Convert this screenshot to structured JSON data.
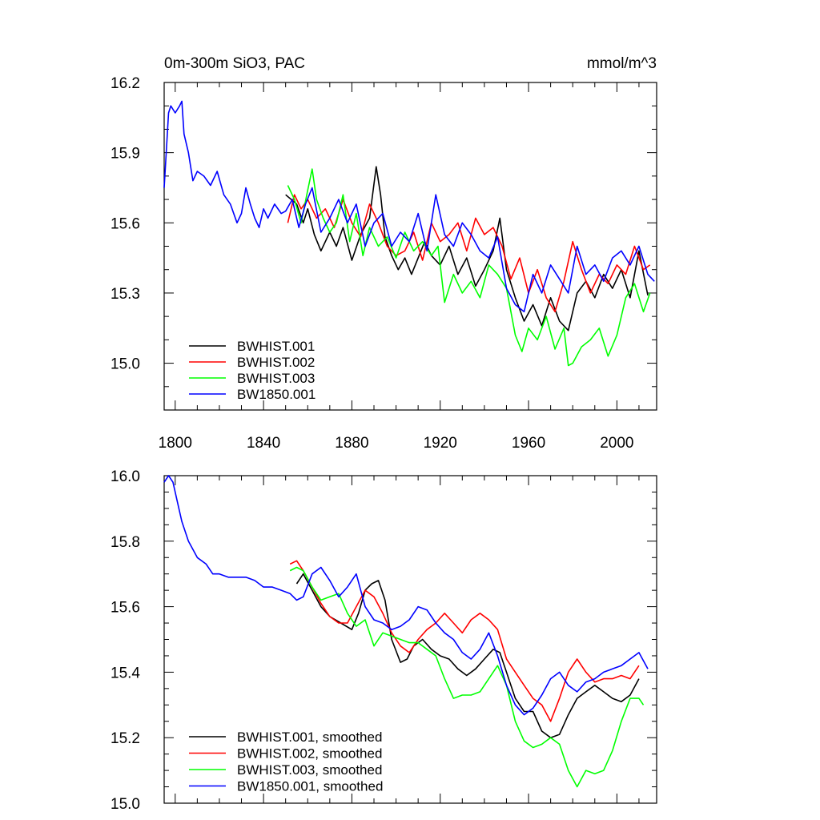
{
  "chart_data": [
    {
      "type": "line",
      "title": "0m-300m SiO3, PAC",
      "units": "mmol/m^3",
      "xlim": [
        1795,
        2018
      ],
      "ylim": [
        14.8,
        16.2
      ],
      "x_ticks": [
        1800,
        1840,
        1880,
        1920,
        1960,
        2000
      ],
      "y_ticks": [
        15.0,
        15.3,
        15.6,
        15.9,
        16.2
      ],
      "y_tick_labels": [
        "15.0",
        "15.3",
        "15.6",
        "15.9",
        "16.2"
      ],
      "legend": [
        "BWHIST.001",
        "BWHIST.002",
        "BWHIST.003",
        "BW1850.001"
      ],
      "series": [
        {
          "name": "BWHIST.001",
          "color": "#000000",
          "x": [
            1850,
            1855,
            1858,
            1860,
            1863,
            1866,
            1870,
            1873,
            1876,
            1880,
            1884,
            1888,
            1891,
            1893,
            1895,
            1898,
            1901,
            1904,
            1907,
            1910,
            1913,
            1916,
            1920,
            1924,
            1928,
            1932,
            1936,
            1940,
            1944,
            1947,
            1950,
            1954,
            1958,
            1962,
            1966,
            1970,
            1974,
            1978,
            1982,
            1986,
            1990,
            1994,
            1998,
            2002,
            2006,
            2010,
            2014
          ],
          "values": [
            15.72,
            15.68,
            15.6,
            15.66,
            15.55,
            15.48,
            15.56,
            15.5,
            15.58,
            15.44,
            15.55,
            15.62,
            15.84,
            15.72,
            15.54,
            15.46,
            15.4,
            15.45,
            15.38,
            15.45,
            15.52,
            15.46,
            15.42,
            15.5,
            15.38,
            15.45,
            15.33,
            15.4,
            15.48,
            15.62,
            15.4,
            15.28,
            15.18,
            15.25,
            15.16,
            15.28,
            15.18,
            15.14,
            15.3,
            15.35,
            15.28,
            15.38,
            15.32,
            15.4,
            15.28,
            15.48,
            15.29
          ]
        },
        {
          "name": "BWHIST.002",
          "color": "#ff0000",
          "x": [
            1851,
            1854,
            1857,
            1860,
            1864,
            1868,
            1872,
            1876,
            1880,
            1884,
            1888,
            1892,
            1896,
            1900,
            1904,
            1908,
            1912,
            1916,
            1920,
            1924,
            1928,
            1932,
            1936,
            1940,
            1944,
            1948,
            1952,
            1956,
            1960,
            1964,
            1968,
            1972,
            1976,
            1980,
            1984,
            1988,
            1992,
            1996,
            2000,
            2004,
            2008,
            2012,
            2015
          ],
          "values": [
            15.6,
            15.72,
            15.66,
            15.7,
            15.62,
            15.66,
            15.58,
            15.7,
            15.6,
            15.54,
            15.68,
            15.6,
            15.5,
            15.46,
            15.48,
            15.56,
            15.44,
            15.6,
            15.52,
            15.55,
            15.6,
            15.48,
            15.62,
            15.55,
            15.58,
            15.5,
            15.36,
            15.45,
            15.3,
            15.4,
            15.28,
            15.22,
            15.35,
            15.52,
            15.4,
            15.3,
            15.38,
            15.34,
            15.42,
            15.38,
            15.5,
            15.4,
            15.42
          ]
        },
        {
          "name": "BWHIST.003",
          "color": "#00ff00",
          "x": [
            1851,
            1854,
            1857,
            1860,
            1862,
            1864,
            1867,
            1870,
            1873,
            1876,
            1879,
            1882,
            1885,
            1888,
            1892,
            1896,
            1900,
            1904,
            1908,
            1912,
            1916,
            1919,
            1922,
            1926,
            1930,
            1934,
            1938,
            1942,
            1946,
            1950,
            1954,
            1957,
            1960,
            1964,
            1968,
            1972,
            1976,
            1978,
            1980,
            1984,
            1988,
            1992,
            1996,
            2000,
            2004,
            2008,
            2012,
            2015
          ],
          "values": [
            15.76,
            15.7,
            15.6,
            15.74,
            15.83,
            15.7,
            15.62,
            15.56,
            15.6,
            15.72,
            15.52,
            15.64,
            15.46,
            15.58,
            15.5,
            15.54,
            15.45,
            15.56,
            15.48,
            15.52,
            15.46,
            15.5,
            15.26,
            15.38,
            15.3,
            15.35,
            15.28,
            15.42,
            15.38,
            15.32,
            15.12,
            15.05,
            15.15,
            15.1,
            15.2,
            15.06,
            15.15,
            14.99,
            15.0,
            15.07,
            15.1,
            15.15,
            15.03,
            15.12,
            15.28,
            15.34,
            15.22,
            15.3
          ]
        },
        {
          "name": "BW1850.001",
          "color": "#0000ff",
          "x": [
            1795,
            1797,
            1798,
            1800,
            1802,
            1803,
            1804,
            1806,
            1808,
            1810,
            1813,
            1816,
            1819,
            1822,
            1825,
            1828,
            1830,
            1832,
            1834,
            1836,
            1838,
            1840,
            1842,
            1845,
            1848,
            1850,
            1853,
            1856,
            1859,
            1862,
            1866,
            1870,
            1874,
            1878,
            1882,
            1886,
            1890,
            1894,
            1898,
            1902,
            1906,
            1910,
            1914,
            1918,
            1922,
            1926,
            1930,
            1934,
            1938,
            1942,
            1946,
            1950,
            1954,
            1958,
            1962,
            1966,
            1970,
            1974,
            1978,
            1982,
            1986,
            1990,
            1994,
            1998,
            2002,
            2006,
            2010,
            2014,
            2017
          ],
          "values": [
            15.75,
            16.07,
            16.1,
            16.07,
            16.1,
            16.12,
            15.98,
            15.9,
            15.78,
            15.82,
            15.8,
            15.76,
            15.82,
            15.72,
            15.68,
            15.6,
            15.64,
            15.75,
            15.68,
            15.62,
            15.58,
            15.66,
            15.62,
            15.68,
            15.64,
            15.65,
            15.7,
            15.58,
            15.68,
            15.75,
            15.56,
            15.62,
            15.7,
            15.6,
            15.68,
            15.5,
            15.6,
            15.64,
            15.5,
            15.56,
            15.52,
            15.64,
            15.48,
            15.72,
            15.55,
            15.5,
            15.6,
            15.55,
            15.48,
            15.45,
            15.54,
            15.32,
            15.25,
            15.22,
            15.38,
            15.3,
            15.42,
            15.36,
            15.3,
            15.5,
            15.38,
            15.42,
            15.35,
            15.45,
            15.48,
            15.42,
            15.5,
            15.38,
            15.35
          ]
        }
      ]
    },
    {
      "type": "line",
      "title": "",
      "xlim": [
        1795,
        2018
      ],
      "ylim": [
        15.0,
        16.0
      ],
      "x_ticks": [
        1800,
        1840,
        1880,
        1920,
        1960,
        2000
      ],
      "y_ticks": [
        15.0,
        15.2,
        15.4,
        15.6,
        15.8,
        16.0
      ],
      "y_tick_labels": [
        "15.0",
        "15.2",
        "15.4",
        "15.6",
        "15.8",
        "16.0"
      ],
      "legend": [
        "BWHIST.001, smoothed",
        "BWHIST.002, smoothed",
        "BWHIST.003, smoothed",
        "BW1850.001, smoothed"
      ],
      "series": [
        {
          "name": "BWHIST.001, smoothed",
          "color": "#000000",
          "x": [
            1855,
            1858,
            1862,
            1866,
            1870,
            1875,
            1880,
            1883,
            1886,
            1889,
            1892,
            1895,
            1898,
            1902,
            1905,
            1908,
            1912,
            1916,
            1920,
            1924,
            1928,
            1932,
            1936,
            1940,
            1944,
            1947,
            1950,
            1954,
            1958,
            1962,
            1966,
            1970,
            1974,
            1978,
            1982,
            1986,
            1990,
            1994,
            1998,
            2002,
            2006,
            2010
          ],
          "values": [
            15.67,
            15.7,
            15.65,
            15.6,
            15.57,
            15.55,
            15.53,
            15.58,
            15.65,
            15.67,
            15.68,
            15.62,
            15.5,
            15.43,
            15.44,
            15.48,
            15.5,
            15.47,
            15.45,
            15.44,
            15.41,
            15.39,
            15.41,
            15.44,
            15.47,
            15.46,
            15.4,
            15.32,
            15.28,
            15.28,
            15.22,
            15.2,
            15.21,
            15.27,
            15.32,
            15.34,
            15.36,
            15.34,
            15.32,
            15.31,
            15.33,
            15.38
          ]
        },
        {
          "name": "BWHIST.002, smoothed",
          "color": "#ff0000",
          "x": [
            1852,
            1855,
            1858,
            1862,
            1866,
            1870,
            1874,
            1878,
            1882,
            1886,
            1890,
            1894,
            1898,
            1902,
            1906,
            1910,
            1914,
            1918,
            1922,
            1926,
            1930,
            1934,
            1938,
            1942,
            1946,
            1950,
            1954,
            1958,
            1962,
            1966,
            1970,
            1974,
            1978,
            1982,
            1986,
            1990,
            1994,
            1998,
            2002,
            2006,
            2010
          ],
          "values": [
            15.73,
            15.74,
            15.71,
            15.66,
            15.61,
            15.57,
            15.55,
            15.55,
            15.6,
            15.65,
            15.63,
            15.58,
            15.52,
            15.48,
            15.46,
            15.5,
            15.53,
            15.55,
            15.58,
            15.55,
            15.52,
            15.56,
            15.58,
            15.56,
            15.53,
            15.44,
            15.4,
            15.36,
            15.32,
            15.3,
            15.25,
            15.32,
            15.4,
            15.44,
            15.4,
            15.37,
            15.38,
            15.38,
            15.39,
            15.38,
            15.42
          ]
        },
        {
          "name": "BWHIST.003, smoothed",
          "color": "#00ff00",
          "x": [
            1852,
            1855,
            1858,
            1862,
            1866,
            1870,
            1874,
            1878,
            1882,
            1886,
            1890,
            1894,
            1898,
            1902,
            1906,
            1910,
            1914,
            1918,
            1922,
            1926,
            1930,
            1934,
            1938,
            1942,
            1946,
            1950,
            1954,
            1958,
            1962,
            1966,
            1970,
            1974,
            1978,
            1982,
            1986,
            1990,
            1994,
            1998,
            2002,
            2006,
            2010,
            2012
          ],
          "values": [
            15.71,
            15.72,
            15.71,
            15.66,
            15.62,
            15.63,
            15.64,
            15.58,
            15.54,
            15.56,
            15.48,
            15.52,
            15.51,
            15.5,
            15.49,
            15.49,
            15.47,
            15.45,
            15.38,
            15.32,
            15.33,
            15.33,
            15.34,
            15.38,
            15.42,
            15.36,
            15.25,
            15.19,
            15.17,
            15.18,
            15.2,
            15.18,
            15.1,
            15.05,
            15.1,
            15.09,
            15.1,
            15.16,
            15.25,
            15.32,
            15.32,
            15.3
          ]
        },
        {
          "name": "BW1850.001, smoothed",
          "color": "#0000ff",
          "x": [
            1795,
            1797,
            1799,
            1801,
            1803,
            1806,
            1810,
            1814,
            1817,
            1820,
            1824,
            1828,
            1832,
            1836,
            1840,
            1844,
            1848,
            1852,
            1855,
            1858,
            1862,
            1866,
            1870,
            1874,
            1878,
            1882,
            1886,
            1890,
            1894,
            1898,
            1902,
            1906,
            1910,
            1914,
            1918,
            1922,
            1926,
            1930,
            1934,
            1938,
            1942,
            1946,
            1950,
            1954,
            1958,
            1962,
            1966,
            1970,
            1974,
            1978,
            1982,
            1986,
            1990,
            1994,
            1998,
            2002,
            2006,
            2010,
            2014
          ],
          "values": [
            15.98,
            16.0,
            15.98,
            15.92,
            15.86,
            15.8,
            15.75,
            15.73,
            15.7,
            15.7,
            15.69,
            15.69,
            15.69,
            15.68,
            15.66,
            15.66,
            15.65,
            15.64,
            15.62,
            15.63,
            15.7,
            15.72,
            15.68,
            15.63,
            15.66,
            15.7,
            15.6,
            15.56,
            15.55,
            15.53,
            15.54,
            15.56,
            15.6,
            15.59,
            15.55,
            15.52,
            15.5,
            15.46,
            15.44,
            15.47,
            15.52,
            15.45,
            15.36,
            15.3,
            15.27,
            15.29,
            15.33,
            15.38,
            15.4,
            15.36,
            15.34,
            15.37,
            15.38,
            15.4,
            15.41,
            15.42,
            15.44,
            15.46,
            15.41
          ]
        }
      ]
    }
  ]
}
